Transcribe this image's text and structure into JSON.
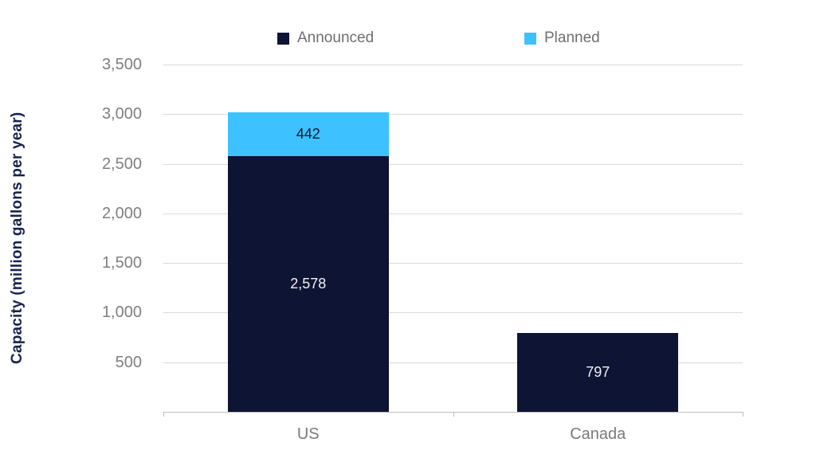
{
  "chart_data": {
    "type": "bar",
    "stacked": true,
    "title": "",
    "ylabel": "Capacity (million gallons per year)",
    "xlabel": "",
    "categories": [
      "US",
      "Canada"
    ],
    "series": [
      {
        "name": "Announced",
        "color": "#0E1433",
        "values": [
          2578,
          797
        ],
        "labels": [
          "2,578",
          "797"
        ],
        "label_color": "#F2F2F2"
      },
      {
        "name": "Planned",
        "color": "#3DC2FF",
        "values": [
          442,
          0
        ],
        "labels": [
          "442",
          ""
        ],
        "label_color": "#0F1733"
      }
    ],
    "ylim": [
      0,
      3500
    ],
    "yticks": [
      {
        "value": 500,
        "label": "500"
      },
      {
        "value": 1000,
        "label": "1,000"
      },
      {
        "value": 1500,
        "label": "1,500"
      },
      {
        "value": 2000,
        "label": "2,000"
      },
      {
        "value": 2500,
        "label": "2,500"
      },
      {
        "value": 3000,
        "label": "3,000"
      },
      {
        "value": 3500,
        "label": "3,500"
      }
    ],
    "grid": true,
    "legend_position": "top",
    "style_colors": {
      "gridline": "#D9D9D9",
      "axis_line": "#BFBFBF",
      "tick_label": "#7F7F7F",
      "category_label": "#7A7A7A",
      "legend_text": "#6E6E6E",
      "axis_title": "#17234D",
      "background": "#FFFFFF"
    }
  }
}
